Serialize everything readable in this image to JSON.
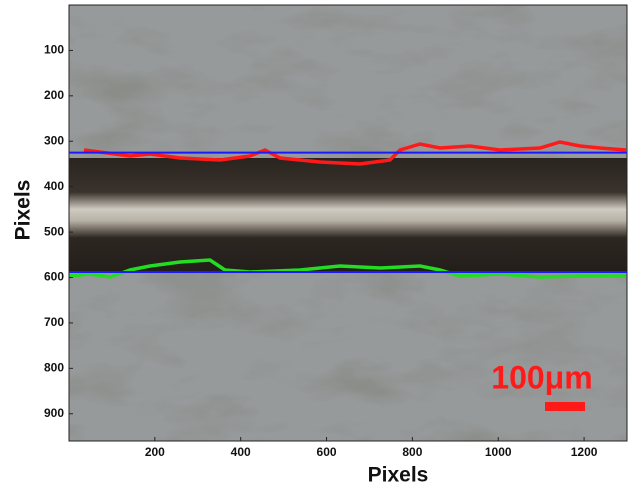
{
  "chart_data": {
    "type": "image",
    "xlabel": "Pixels",
    "ylabel": "Pixels",
    "xlim": [
      0,
      1300
    ],
    "xticks": [
      200,
      400,
      600,
      800,
      1000,
      1200
    ],
    "ylim": [
      960,
      0
    ],
    "yticks": [
      100,
      200,
      300,
      400,
      500,
      600,
      700,
      800,
      900
    ],
    "reference_lines": {
      "color": "#1a1aff",
      "values": [
        325,
        588
      ]
    },
    "annotation": "100μm",
    "annotation_color": "#ff1a1a"
  }
}
